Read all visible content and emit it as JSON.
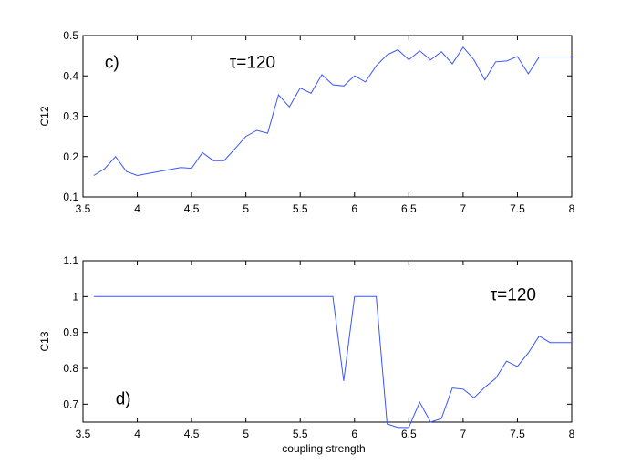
{
  "chart_data": [
    {
      "type": "line",
      "ylabel": "C12",
      "xlabel": "",
      "xlim": [
        3.5,
        8
      ],
      "ylim": [
        0.1,
        0.5
      ],
      "xticks": [
        "3.5",
        "4",
        "4.5",
        "5",
        "5.5",
        "6",
        "6.5",
        "7",
        "7.5",
        "8"
      ],
      "yticks": [
        "0.1",
        "0.2",
        "0.3",
        "0.4",
        "0.5"
      ],
      "annotations": [
        {
          "text": "c)",
          "x": 3.7,
          "y": 0.42
        },
        {
          "text": "τ=120",
          "x": 4.85,
          "y": 0.42
        }
      ],
      "color": "#3a55ff",
      "x": [
        3.6,
        3.7,
        3.8,
        3.9,
        4.0,
        4.4,
        4.5,
        4.6,
        4.7,
        4.8,
        4.9,
        5.0,
        5.1,
        5.2,
        5.3,
        5.4,
        5.5,
        5.6,
        5.7,
        5.8,
        5.9,
        6.0,
        6.1,
        6.2,
        6.3,
        6.4,
        6.5,
        6.6,
        6.7,
        6.8,
        6.9,
        7.0,
        7.1,
        7.2,
        7.3,
        7.4,
        7.5,
        7.6,
        7.7,
        7.8,
        7.9,
        8.0
      ],
      "y": [
        0.153,
        0.17,
        0.2,
        0.163,
        0.153,
        0.173,
        0.171,
        0.21,
        0.19,
        0.19,
        0.22,
        0.25,
        0.265,
        0.258,
        0.353,
        0.323,
        0.37,
        0.357,
        0.403,
        0.378,
        0.375,
        0.4,
        0.385,
        0.425,
        0.452,
        0.465,
        0.44,
        0.462,
        0.44,
        0.46,
        0.43,
        0.471,
        0.44,
        0.39,
        0.435,
        0.437,
        0.448,
        0.405,
        0.447,
        0.447,
        0.447,
        0.447
      ]
    },
    {
      "type": "line",
      "ylabel": "C13",
      "xlabel": "coupling strength",
      "xlim": [
        3.5,
        8
      ],
      "ylim": [
        0.65,
        1.1
      ],
      "xticks": [
        "3.5",
        "4",
        "4.5",
        "5",
        "5.5",
        "6",
        "6.5",
        "7",
        "7.5",
        "8"
      ],
      "yticks": [
        "0.7",
        "0.8",
        "0.9",
        "1",
        "1.1"
      ],
      "annotations": [
        {
          "text": "d)",
          "x": 3.8,
          "y": 0.7
        },
        {
          "text": "τ=120",
          "x": 7.25,
          "y": 0.99
        }
      ],
      "color": "#3a55ff",
      "x": [
        3.6,
        3.8,
        4.0,
        4.4,
        4.5,
        4.6,
        4.7,
        4.8,
        4.9,
        5.0,
        5.1,
        5.2,
        5.3,
        5.4,
        5.5,
        5.6,
        5.7,
        5.8,
        5.9,
        6.0,
        6.1,
        6.2,
        6.3,
        6.4,
        6.5,
        6.6,
        6.7,
        6.8,
        6.9,
        7.0,
        7.1,
        7.2,
        7.3,
        7.4,
        7.5,
        7.6,
        7.7,
        7.8,
        7.9,
        8.0
      ],
      "y": [
        1.0,
        1.0,
        1.0,
        1.0,
        1.0,
        1.0,
        1.0,
        1.0,
        1.0,
        1.0,
        1.0,
        1.0,
        1.0,
        1.0,
        1.0,
        1.0,
        1.0,
        1.0,
        0.765,
        1.0,
        1.0,
        1.0,
        0.645,
        0.635,
        0.635,
        0.706,
        0.65,
        0.66,
        0.745,
        0.742,
        0.718,
        0.747,
        0.772,
        0.82,
        0.805,
        0.843,
        0.89,
        0.872,
        0.872,
        0.872
      ]
    }
  ]
}
